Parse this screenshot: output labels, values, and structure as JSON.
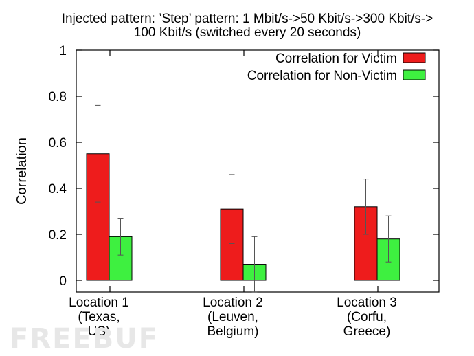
{
  "chart_data": {
    "type": "bar",
    "title_lines": [
      "Injected pattern: ’Step’ pattern: 1 Mbit/s->50 Kbit/s->300 Kbit/s->",
      "100 Kbit/s (switched every 20 seconds)"
    ],
    "xlabel": "",
    "ylabel": "Correlation",
    "ylim": [
      0,
      1
    ],
    "yticks": [
      "0",
      "0.2",
      "0.4",
      "0.6",
      "0.8",
      "1"
    ],
    "categories": [
      [
        "Location 1",
        "(Texas,",
        "US)"
      ],
      [
        "Location 2",
        "(Leuven,",
        "Belgium)"
      ],
      [
        "Location 3",
        "(Corfu,",
        "Greece)"
      ]
    ],
    "series": [
      {
        "name": "Correlation for Victim",
        "color": "#ee1c1c",
        "values": [
          0.55,
          0.31,
          0.32
        ],
        "err_low": [
          0.34,
          0.16,
          0.2
        ],
        "err_high": [
          0.76,
          0.46,
          0.44
        ]
      },
      {
        "name": "Correlation for Non-Victim",
        "color": "#3ef040",
        "values": [
          0.19,
          0.07,
          0.18
        ],
        "err_low": [
          0.11,
          -0.05,
          0.08
        ],
        "err_high": [
          0.27,
          0.19,
          0.28
        ]
      }
    ],
    "grid": false,
    "legend_position": "top-right"
  },
  "watermark": {
    "text": "FREEBUF"
  }
}
